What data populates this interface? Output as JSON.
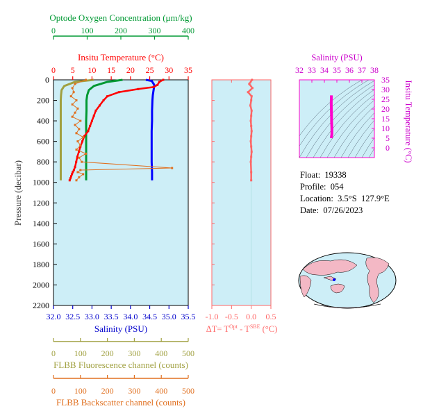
{
  "info": {
    "float_label": "Float:",
    "float_value": "19338",
    "profile_label": "Profile:",
    "profile_value": "054",
    "location_label": "Location:",
    "location_value": "3.5°S  127.9°E",
    "date_label": "Date:",
    "date_value": "07/26/2023"
  },
  "colors": {
    "oxygen": "#009933",
    "temperature": "#ff0000",
    "salinity": "#0000ff",
    "fluorescence": "#a0a040",
    "backscatter": "#e07020",
    "delta": "#ff6666",
    "ts": "#ff00cc",
    "panel_bg": "#cdeef7"
  },
  "chart_data": [
    {
      "type": "line",
      "panel": "profile",
      "ylabel": "Pressure (decibar)",
      "ylim": [
        0,
        2200
      ],
      "yticks": [
        0,
        200,
        400,
        600,
        800,
        1000,
        1200,
        1400,
        1600,
        1800,
        2000,
        2200
      ],
      "y_inverted": true,
      "axes": {
        "oxygen": {
          "label": "Optode Oxygen Concentration (μm/kg)",
          "lim": [
            0,
            400
          ],
          "ticks": [
            0,
            100,
            200,
            300,
            400
          ]
        },
        "temperature": {
          "label": "Insitu Temperature (°C)",
          "lim": [
            0,
            35
          ],
          "ticks": [
            0,
            5,
            10,
            15,
            20,
            25,
            30,
            35
          ]
        },
        "salinity": {
          "label": "Salinity (PSU)",
          "lim": [
            32.0,
            35.5
          ],
          "ticks": [
            "32.0",
            "32.5",
            "33.0",
            "33.5",
            "34.0",
            "34.5",
            "35.0",
            "35.5"
          ]
        },
        "fluorescence": {
          "label": "FLBB Fluorescence channel (counts)",
          "lim": [
            0,
            500
          ],
          "ticks": [
            0,
            100,
            200,
            300,
            400,
            500
          ]
        },
        "backscatter": {
          "label": "FLBB Backscatter channel (counts)",
          "lim": [
            0,
            500
          ],
          "ticks": [
            0,
            100,
            200,
            300,
            400,
            500
          ]
        }
      },
      "series": [
        {
          "key": "temperature",
          "x": [
            28.5,
            27.5,
            27.0,
            26.0,
            22.0,
            17.0,
            14.0,
            13.0,
            12.0,
            11.0,
            10.5,
            10.0,
            9.5,
            9.0,
            8.0,
            7.5,
            7.0,
            6.6,
            6.2,
            5.9,
            5.6,
            5.3,
            5.0,
            4.8,
            4.6,
            4.4,
            4.2
          ],
          "y": [
            0,
            20,
            50,
            70,
            90,
            120,
            160,
            200,
            250,
            300,
            350,
            400,
            450,
            500,
            550,
            600,
            650,
            700,
            750,
            800,
            850,
            880,
            900,
            920,
            940,
            960,
            980
          ]
        },
        {
          "key": "salinity",
          "x": [
            34.4,
            34.55,
            34.62,
            34.6,
            34.58,
            34.57,
            34.56,
            34.56,
            34.55,
            34.55,
            34.55,
            34.55,
            34.56,
            34.56
          ],
          "y": [
            0,
            10,
            50,
            100,
            150,
            200,
            300,
            400,
            500,
            600,
            700,
            800,
            900,
            980
          ]
        },
        {
          "key": "oxygen",
          "x": [
            205,
            160,
            120,
            105,
            100,
            98,
            98,
            97,
            97,
            97,
            97,
            97
          ],
          "y": [
            0,
            20,
            60,
            100,
            150,
            200,
            300,
            400,
            500,
            600,
            800,
            980
          ]
        },
        {
          "key": "fluorescence",
          "x": [
            150,
            80,
            40,
            30,
            28,
            27,
            27,
            27,
            27,
            27,
            27,
            27
          ],
          "y": [
            0,
            20,
            60,
            100,
            150,
            200,
            300,
            400,
            500,
            600,
            800,
            980
          ]
        },
        {
          "key": "backscatter",
          "x": [
            120,
            80,
            70,
            75,
            65,
            85,
            70,
            90,
            80,
            70,
            100,
            80,
            95,
            85,
            110,
            90,
            100,
            85,
            120,
            95,
            105,
            440,
            100,
            90,
            110,
            95,
            85
          ],
          "y": [
            0,
            40,
            80,
            120,
            160,
            200,
            240,
            280,
            320,
            360,
            400,
            440,
            480,
            520,
            560,
            600,
            640,
            680,
            720,
            760,
            800,
            860,
            880,
            900,
            920,
            950,
            980
          ]
        }
      ]
    },
    {
      "type": "scatter",
      "panel": "delta",
      "xlabel_main": "ΔT= T",
      "xlabel_sup1": "Opt",
      "xlabel_mid": " - T",
      "xlabel_sup2": "SBE",
      "xlabel_end": " (°C)",
      "xlim": [
        -1.0,
        0.5
      ],
      "xticks": [
        "-1.0",
        "-0.5",
        "0.0",
        "0.5"
      ],
      "ylim": [
        0,
        2200
      ],
      "x": [
        0.02,
        -0.05,
        0.03,
        -0.08,
        0.01,
        0.0,
        -0.02,
        0.01,
        0.0,
        -0.01,
        0.0,
        0.01,
        0.0,
        -0.01,
        0.0,
        0.01,
        0.0,
        -0.01,
        0.0,
        0.0
      ],
      "y": [
        0,
        40,
        80,
        120,
        160,
        200,
        250,
        300,
        350,
        400,
        450,
        500,
        550,
        600,
        650,
        700,
        750,
        800,
        900,
        980
      ]
    },
    {
      "type": "line",
      "panel": "ts",
      "xlabel": "Salinity (PSU)",
      "ylabel": "Insitu Temperature (°C)",
      "xlim": [
        32,
        38
      ],
      "xticks": [
        32,
        33,
        34,
        35,
        36,
        37,
        38
      ],
      "ylim": [
        -5,
        35
      ],
      "yticks": [
        0,
        5,
        10,
        15,
        20,
        25,
        30,
        35
      ],
      "x": [
        34.55,
        34.6,
        34.6,
        34.58,
        34.57,
        34.56,
        34.55,
        34.55,
        34.56,
        34.56
      ],
      "y": [
        5,
        7,
        10,
        13,
        17,
        20,
        22,
        24,
        26,
        27
      ]
    }
  ]
}
